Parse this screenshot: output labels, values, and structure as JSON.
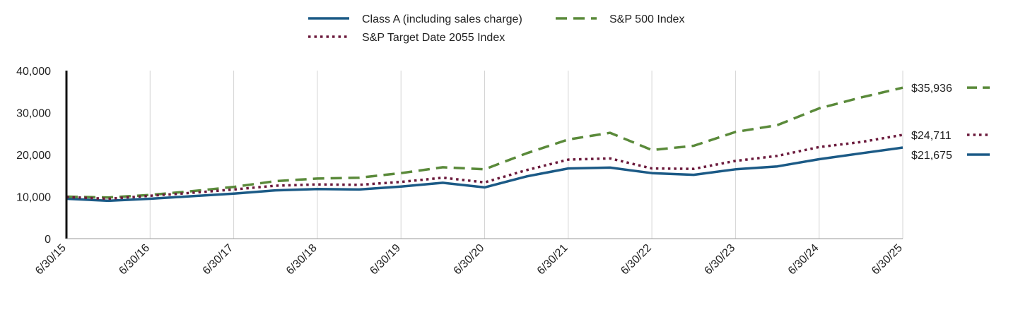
{
  "chart_data": {
    "type": "line",
    "title": "",
    "xlabel": "",
    "ylabel": "",
    "ylim": [
      0,
      40000
    ],
    "y_ticks": [
      0,
      10000,
      20000,
      30000,
      40000
    ],
    "y_tick_labels": [
      "0",
      "10,000",
      "20,000",
      "30,000",
      "40,000"
    ],
    "x_range": [
      0,
      10
    ],
    "x_ticks": [
      0,
      1,
      2,
      3,
      4,
      5,
      6,
      7,
      8,
      9,
      10
    ],
    "x_tick_labels": [
      "6/30/15",
      "6/30/16",
      "6/30/17",
      "6/30/18",
      "6/30/19",
      "6/30/20",
      "6/30/21",
      "6/30/22",
      "6/30/23",
      "6/30/24",
      "6/30/25"
    ],
    "x_unit": "years from 6/30/15",
    "grid": "vertical",
    "legend_position": "top-center",
    "series": [
      {
        "name": "Class A (including sales charge)",
        "color": "#1b5a86",
        "style": "solid",
        "end_label": "$21,675",
        "x": [
          0,
          0.5,
          1,
          1.5,
          2,
          2.5,
          3,
          3.5,
          4,
          4.5,
          5,
          5.5,
          6,
          6.5,
          7,
          7.5,
          8,
          8.5,
          9,
          9.5,
          10
        ],
        "values": [
          9500,
          9000,
          9500,
          10100,
          10700,
          11500,
          11800,
          11700,
          12400,
          13300,
          12200,
          14800,
          16700,
          16900,
          15600,
          15200,
          16500,
          17200,
          18900,
          20300,
          21675
        ]
      },
      {
        "name": "S&P 500 Index",
        "color": "#5a8a3a",
        "style": "dashed",
        "end_label": "$35,936",
        "x": [
          0,
          0.5,
          1,
          1.5,
          2,
          2.5,
          3,
          3.5,
          4,
          4.5,
          5,
          5.5,
          6,
          6.5,
          7,
          7.5,
          8,
          8.5,
          9,
          9.5,
          10
        ],
        "values": [
          10000,
          9800,
          10400,
          11300,
          12300,
          13700,
          14300,
          14500,
          15600,
          17000,
          16500,
          20300,
          23600,
          25200,
          21100,
          22100,
          25400,
          27000,
          31000,
          33600,
          35936
        ]
      },
      {
        "name": "S&P Target Date 2055 Index",
        "color": "#6b1a3c",
        "style": "dotted",
        "end_label": "$24,711",
        "x": [
          0,
          0.5,
          1,
          1.5,
          2,
          2.5,
          3,
          3.5,
          4,
          4.5,
          5,
          5.5,
          6,
          6.5,
          7,
          7.5,
          8,
          8.5,
          9,
          9.5,
          10
        ],
        "values": [
          9900,
          9500,
          10200,
          10900,
          11700,
          12600,
          12900,
          12800,
          13500,
          14500,
          13400,
          16300,
          18800,
          19100,
          16700,
          16600,
          18500,
          19700,
          21800,
          23000,
          24711
        ]
      }
    ]
  }
}
